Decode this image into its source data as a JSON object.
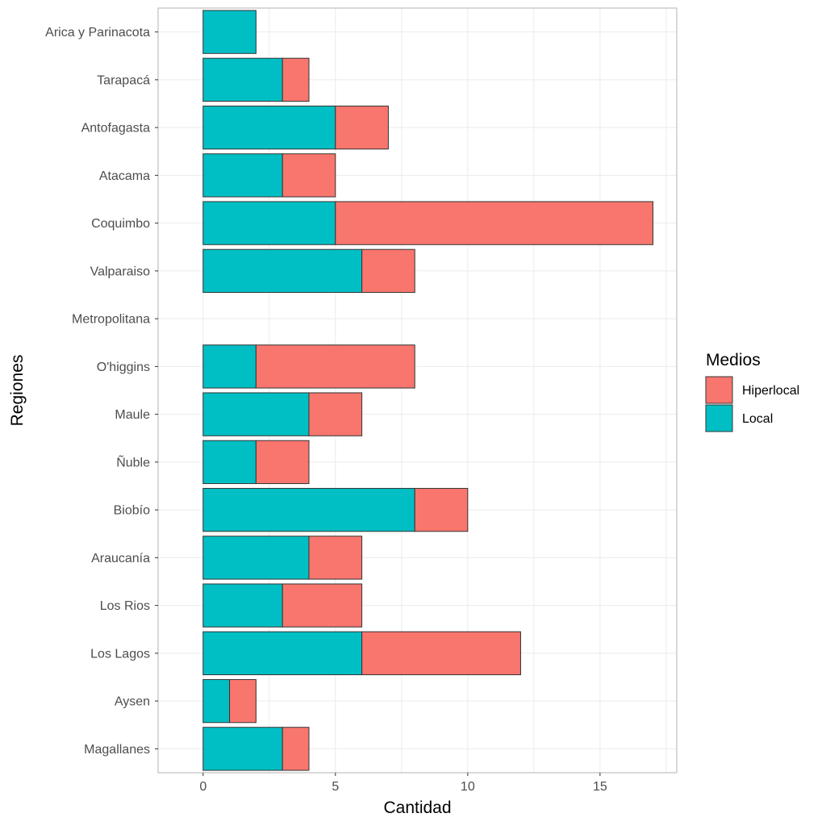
{
  "chart_data": {
    "type": "bar",
    "orientation": "horizontal",
    "stacked": true,
    "xlabel": "Cantidad",
    "ylabel": "Regiones",
    "xlim": [
      -1.7,
      17.9
    ],
    "xticks": [
      0,
      5,
      10,
      15
    ],
    "grid": true,
    "categories": [
      "Arica y Parinacota",
      "Tarapacá",
      "Antofagasta",
      "Atacama",
      "Coquimbo",
      "Valparaiso",
      "Metropolitana",
      "O'higgins",
      "Maule",
      "Ñuble",
      "Biobío",
      "Araucanía",
      "Los Rios ",
      "Los Lagos",
      "Aysen",
      "Magallanes"
    ],
    "series": [
      {
        "name": "Local",
        "color": "#00BFC4",
        "values": [
          2,
          3,
          5,
          3,
          5,
          6,
          0,
          2,
          4,
          2,
          8,
          4,
          3,
          6,
          1,
          3
        ]
      },
      {
        "name": "Hiperlocal",
        "color": "#F8766D",
        "values": [
          0,
          1,
          2,
          2,
          12,
          2,
          0,
          6,
          2,
          2,
          2,
          2,
          3,
          6,
          1,
          1
        ]
      }
    ],
    "legend": {
      "title": "Medios",
      "position": "right",
      "entries": [
        {
          "label": "Hiperlocal",
          "color": "#F8766D"
        },
        {
          "label": "Local",
          "color": "#00BFC4"
        }
      ]
    }
  }
}
